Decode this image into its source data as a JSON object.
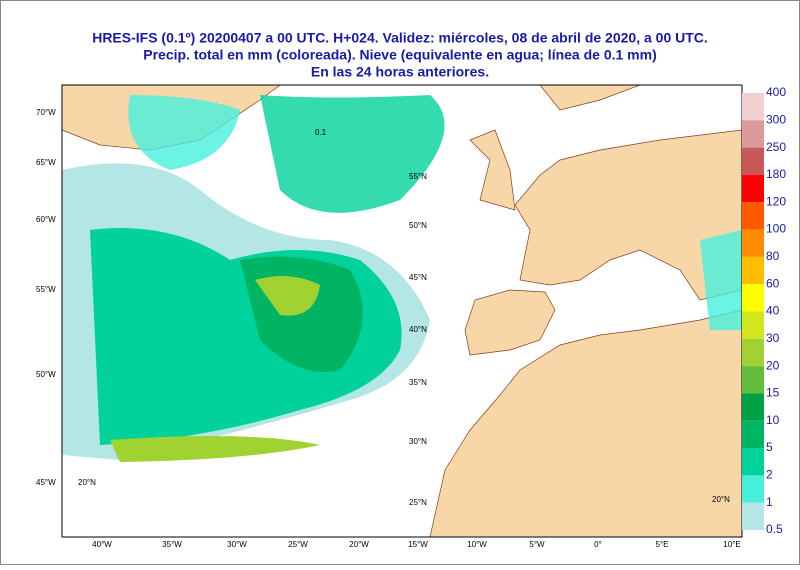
{
  "header": {
    "lines": [
      "HRES-IFS (0.1º) 20200407 a 00 UTC.  H+024. Validez: miércoles, 08 de abril de 2020,  a  00 UTC.",
      "Precip. total en mm (coloreada). Nieve (equivalente en agua; línea de 0.1 mm)",
      "En las 24 horas anteriores."
    ]
  },
  "map": {
    "left_labels": [
      "70°W",
      "65°W",
      "60°W",
      "55°W",
      "50°W",
      "45°W"
    ],
    "bottom_labels": [
      "40°W",
      "35°W",
      "30°W",
      "25°W",
      "20°W",
      "15°W",
      "10°W",
      "5°W",
      "0°",
      "5°E",
      "10°E"
    ],
    "lat_labels": [
      "55°N",
      "50°N",
      "45°N",
      "40°N",
      "35°N",
      "30°N",
      "25°N",
      "20°N",
      "20°N"
    ],
    "contour_label": "0.1"
  },
  "legend": {
    "levels": [
      400,
      300,
      250,
      180,
      120,
      100,
      80,
      60,
      40,
      30,
      20,
      15,
      10,
      5,
      2,
      1,
      0.5
    ],
    "colors": [
      "#f0d0d0",
      "#dc9a9a",
      "#c85858",
      "#ff0000",
      "#ff5a00",
      "#ff8c00",
      "#ffbe00",
      "#ffff00",
      "#d2e61e",
      "#a0d232",
      "#64be3c",
      "#00a046",
      "#00b464",
      "#00d29a",
      "#46f0dc",
      "#b4e6e6"
    ]
  }
}
